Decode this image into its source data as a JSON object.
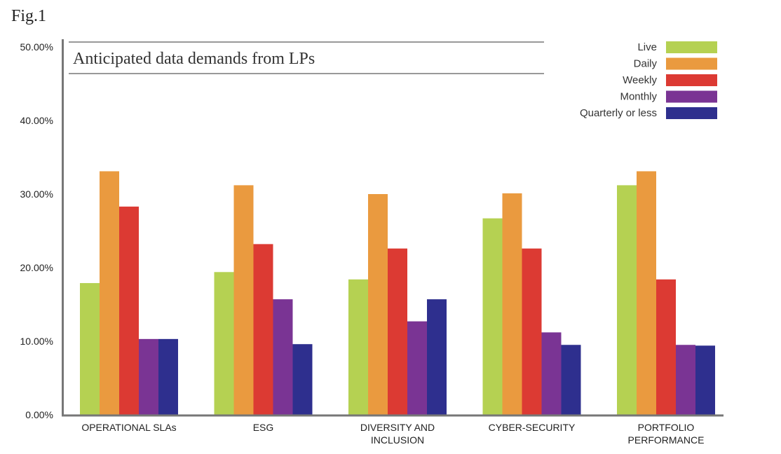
{
  "figure_label": "Fig.1",
  "chart_data": {
    "type": "bar",
    "title": "Anticipated data demands from LPs",
    "xlabel": "",
    "ylabel": "",
    "ylim": [
      0,
      50
    ],
    "yticks": [
      "0.00%",
      "10.00%",
      "20.00%",
      "30.00%",
      "40.00%",
      "50.00%"
    ],
    "categories": [
      [
        "OPERATIONAL SLAs"
      ],
      [
        "ESG"
      ],
      [
        "DIVERSITY AND",
        "INCLUSION"
      ],
      [
        "CYBER-SECURITY"
      ],
      [
        "PORTFOLIO",
        "PERFORMANCE"
      ]
    ],
    "series": [
      {
        "name": "Live",
        "color": "#b5d152",
        "values": [
          17.9,
          19.4,
          18.4,
          26.7,
          31.2
        ]
      },
      {
        "name": "Daily",
        "color": "#ea9a3f",
        "values": [
          33.1,
          31.2,
          30.0,
          30.1,
          33.1
        ]
      },
      {
        "name": "Weekly",
        "color": "#dc3a33",
        "values": [
          28.3,
          23.2,
          22.6,
          22.6,
          18.4
        ]
      },
      {
        "name": "Monthly",
        "color": "#7a3494",
        "values": [
          10.3,
          15.7,
          12.7,
          11.2,
          9.5
        ]
      },
      {
        "name": "Quarterly or less",
        "color": "#2e2f8e",
        "values": [
          10.3,
          9.6,
          15.7,
          9.5,
          9.4
        ]
      }
    ],
    "legend_position": "top-right",
    "grid": false
  }
}
